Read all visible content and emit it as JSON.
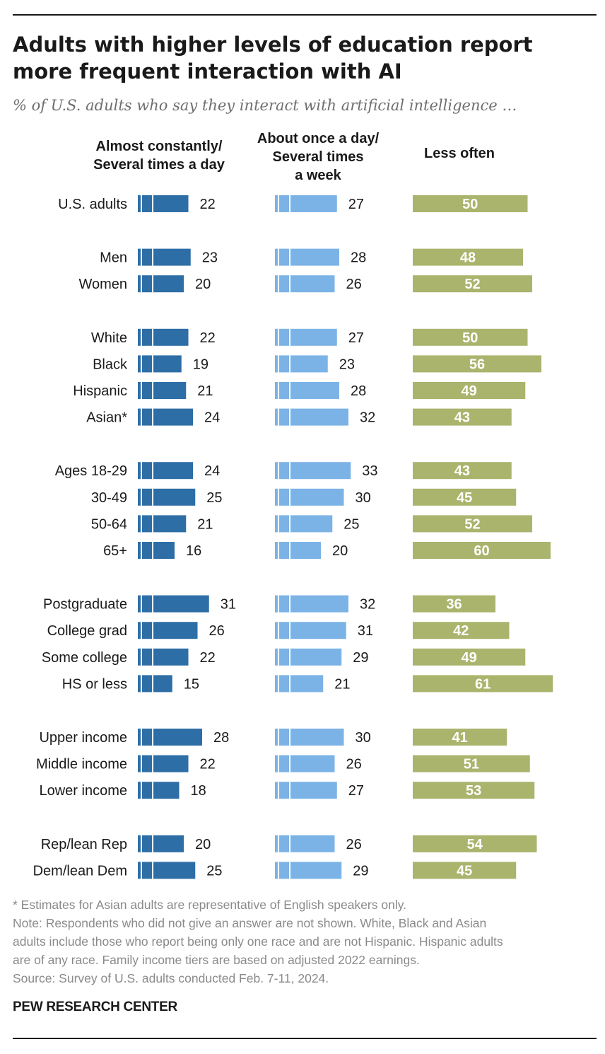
{
  "title": "Adults with higher levels of education report more frequent interaction with AI",
  "subtitle": "% of U.S. adults who say they interact with artificial intelligence …",
  "footnotes": {
    "asterisk": "* Estimates for Asian adults are representative of English speakers only.",
    "note_lines": [
      "Note: Respondents who did not give an answer are not shown. White, Black and Asian",
      "adults include those who report being only one race and are not Hispanic. Hispanic adults",
      "are of any race. Family income tiers are based on adjusted 2022 earnings."
    ],
    "source": "Source: Survey of U.S. adults conducted Feb. 7-11, 2024."
  },
  "org": "PEW RESEARCH CENTER",
  "colors": {
    "series1": "#2e6ea6",
    "series2": "#7cb3e6",
    "series3": "#aab46c",
    "series3_label": "#ffffff"
  },
  "chart_data": {
    "type": "bar",
    "columns": [
      {
        "name": "Almost constantly/ Several times a day",
        "lines": [
          "Almost constantly/",
          "Several times a day"
        ]
      },
      {
        "name": "About once a day/ Several times a week",
        "lines": [
          "About once a day/",
          "Several times",
          "a week"
        ]
      },
      {
        "name": "Less often",
        "lines": [
          "Less often"
        ]
      }
    ],
    "groups": [
      {
        "rows": [
          {
            "label": "U.S. adults",
            "values": [
              22,
              27,
              50
            ]
          }
        ]
      },
      {
        "rows": [
          {
            "label": "Men",
            "values": [
              23,
              28,
              48
            ]
          },
          {
            "label": "Women",
            "values": [
              20,
              26,
              52
            ]
          }
        ]
      },
      {
        "rows": [
          {
            "label": "White",
            "values": [
              22,
              27,
              50
            ]
          },
          {
            "label": "Black",
            "values": [
              19,
              23,
              56
            ]
          },
          {
            "label": "Hispanic",
            "values": [
              21,
              28,
              49
            ]
          },
          {
            "label": "Asian*",
            "values": [
              24,
              32,
              43
            ]
          }
        ]
      },
      {
        "rows": [
          {
            "label": "Ages 18-29",
            "values": [
              24,
              33,
              43
            ]
          },
          {
            "label": "30-49",
            "values": [
              25,
              30,
              45
            ]
          },
          {
            "label": "50-64",
            "values": [
              21,
              25,
              52
            ]
          },
          {
            "label": "65+",
            "values": [
              16,
              20,
              60
            ]
          }
        ]
      },
      {
        "rows": [
          {
            "label": "Postgraduate",
            "values": [
              31,
              32,
              36
            ]
          },
          {
            "label": "College grad",
            "values": [
              26,
              31,
              42
            ]
          },
          {
            "label": "Some college",
            "values": [
              22,
              29,
              49
            ]
          },
          {
            "label": "HS or less",
            "values": [
              15,
              21,
              61
            ]
          }
        ]
      },
      {
        "rows": [
          {
            "label": "Upper income",
            "values": [
              28,
              30,
              41
            ]
          },
          {
            "label": "Middle income",
            "values": [
              22,
              26,
              51
            ]
          },
          {
            "label": "Lower income",
            "values": [
              18,
              27,
              53
            ]
          }
        ]
      },
      {
        "rows": [
          {
            "label": "Rep/lean Rep",
            "values": [
              20,
              26,
              54
            ]
          },
          {
            "label": "Dem/lean Dem",
            "values": [
              25,
              29,
              45
            ]
          }
        ]
      }
    ]
  }
}
